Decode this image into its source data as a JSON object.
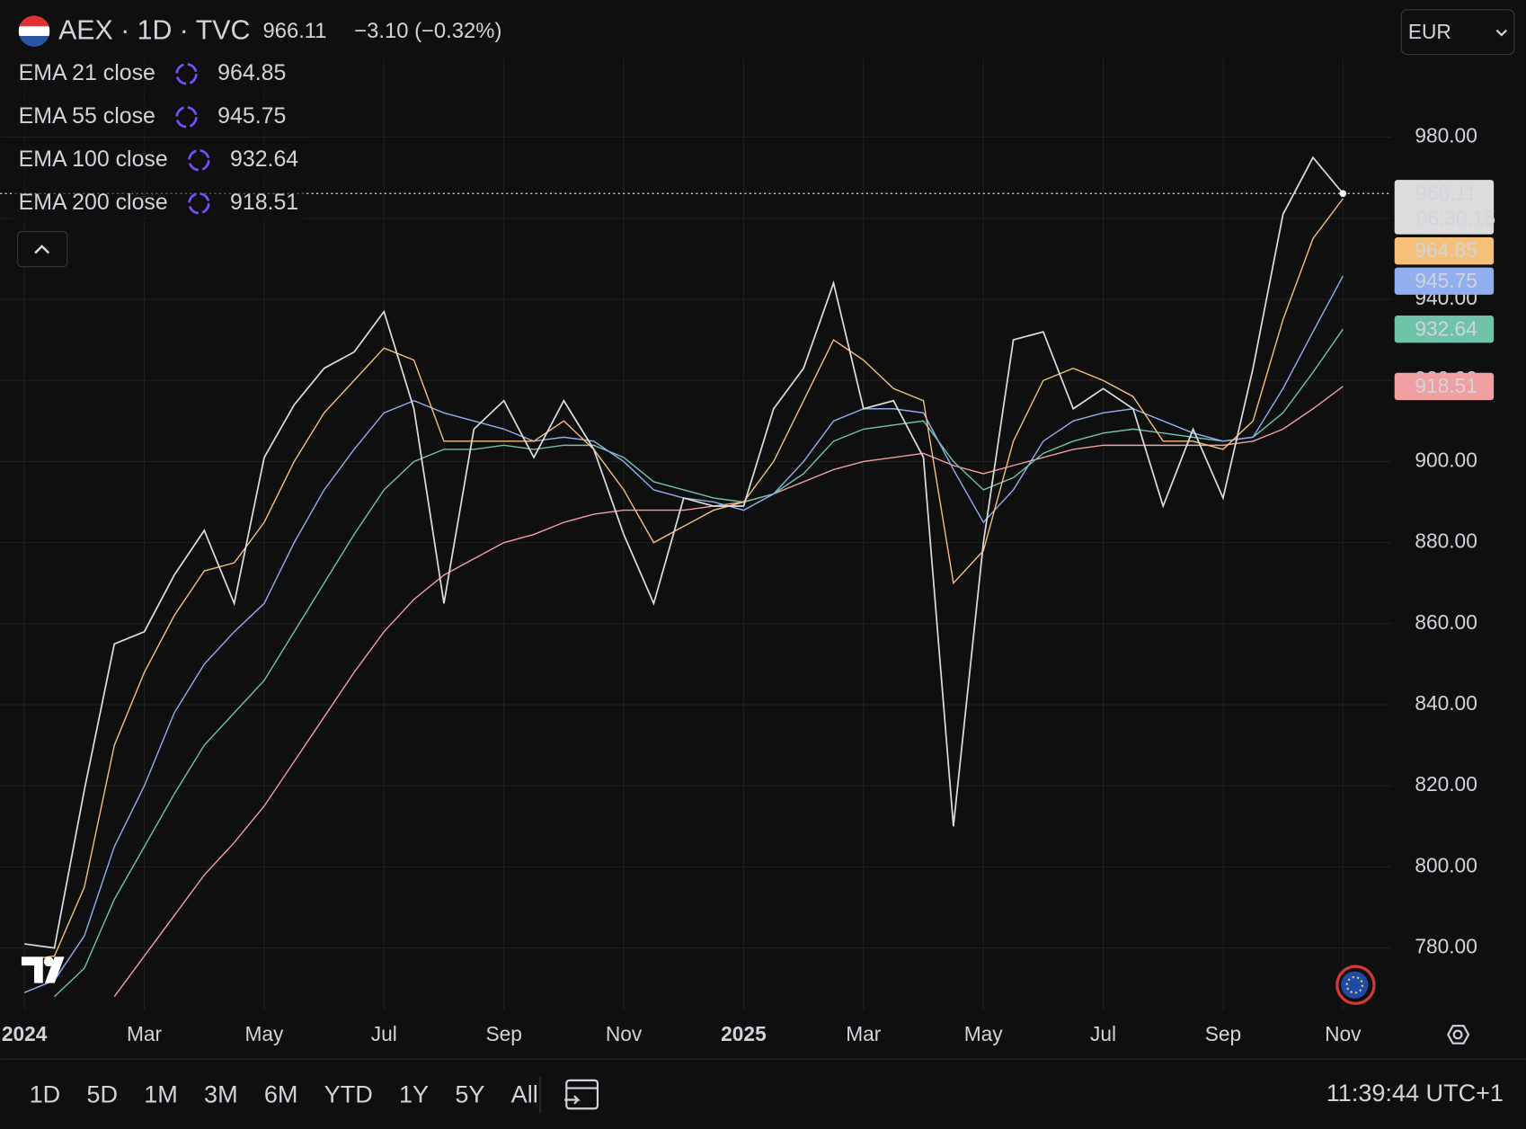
{
  "header": {
    "title": "AEX · 1D · TVC",
    "change": "−3.10 (−0.32%)",
    "currency": "EUR",
    "countdown": "06:30:15"
  },
  "range_buttons": [
    "1D",
    "5D",
    "1M",
    "3M",
    "6M",
    "YTD",
    "1Y",
    "5Y",
    "All"
  ],
  "clock": "11:39:44 UTC+1",
  "chart_data": {
    "type": "line",
    "categories": [
      "2024",
      null,
      null,
      null,
      "Mar",
      null,
      null,
      null,
      "May",
      null,
      null,
      null,
      "Jul",
      null,
      null,
      null,
      "Sep",
      null,
      null,
      null,
      "Nov",
      null,
      null,
      null,
      "2025",
      null,
      null,
      null,
      "Mar",
      null,
      null,
      null,
      "May",
      null,
      null,
      null,
      "Jul",
      null,
      null,
      null,
      "Sep",
      null,
      null,
      null,
      "Nov"
    ],
    "series": [
      {
        "color": "#dcdcdc",
        "values": [
          781,
          780,
          819,
          855,
          858,
          872,
          883,
          865,
          901,
          914,
          923,
          927,
          937,
          913,
          865,
          908,
          915,
          901,
          915,
          903,
          882,
          865,
          891,
          889,
          889,
          913,
          923,
          944,
          913,
          915,
          901,
          810,
          880,
          930,
          932,
          913,
          918,
          913,
          889,
          908,
          891,
          923,
          961,
          975,
          966.11
        ]
      },
      {
        "name": "EMA 21 close",
        "color": "#f5c07a",
        "values": [
          777,
          778,
          795,
          830,
          848,
          862,
          873,
          875,
          885,
          900,
          912,
          920,
          928,
          925,
          905,
          905,
          905,
          905,
          910,
          903,
          893,
          880,
          884,
          888,
          890,
          900,
          915,
          930,
          925,
          918,
          915,
          870,
          878,
          905,
          920,
          923,
          920,
          916,
          905,
          905,
          903,
          910,
          935,
          955,
          964.85
        ]
      },
      {
        "name": "EMA 55 close",
        "color": "#90aef0",
        "values": [
          769,
          772,
          783,
          805,
          820,
          838,
          850,
          858,
          865,
          880,
          893,
          903,
          912,
          915,
          912,
          910,
          908,
          905,
          906,
          905,
          900,
          893,
          891,
          890,
          888,
          892,
          900,
          910,
          913,
          913,
          912,
          898,
          885,
          893,
          905,
          910,
          912,
          913,
          910,
          907,
          905,
          906,
          918,
          932,
          945.75
        ]
      },
      {
        "name": "EMA 100 close",
        "color": "#6fc3a8",
        "values": [
          null,
          768,
          775,
          792,
          805,
          818,
          830,
          838,
          846,
          858,
          870,
          882,
          893,
          900,
          903,
          903,
          904,
          903,
          904,
          904,
          901,
          895,
          893,
          891,
          890,
          892,
          897,
          905,
          908,
          909,
          910,
          900,
          893,
          896,
          902,
          905,
          907,
          908,
          907,
          906,
          905,
          906,
          912,
          922,
          932.64
        ]
      },
      {
        "name": "EMA 200 close",
        "color": "#f0a0a0",
        "values": [
          null,
          null,
          null,
          768,
          778,
          788,
          798,
          806,
          815,
          826,
          837,
          848,
          858,
          866,
          872,
          876,
          880,
          882,
          885,
          887,
          888,
          888,
          888,
          889,
          890,
          892,
          895,
          898,
          900,
          901,
          902,
          899,
          897,
          899,
          901,
          903,
          904,
          904,
          904,
          904,
          904,
          905,
          908,
          913,
          918.51
        ]
      }
    ],
    "ylim": [
      765.35,
      999.44
    ],
    "yticks": [
      {
        "value": 780,
        "label": "780.00"
      },
      {
        "value": 800,
        "label": "800.00"
      },
      {
        "value": 820,
        "label": "820.00"
      },
      {
        "value": 840,
        "label": "840.00"
      },
      {
        "value": 860,
        "label": "860.00"
      },
      {
        "value": 880,
        "label": "880.00"
      },
      {
        "value": 900,
        "label": "900.00"
      },
      {
        "value": 920,
        "label": "920.00"
      },
      {
        "value": 940,
        "label": "940.00"
      },
      {
        "value": 960,
        "label": "960.00"
      },
      {
        "value": 980,
        "label": "980.00"
      }
    ],
    "grid": true
  }
}
